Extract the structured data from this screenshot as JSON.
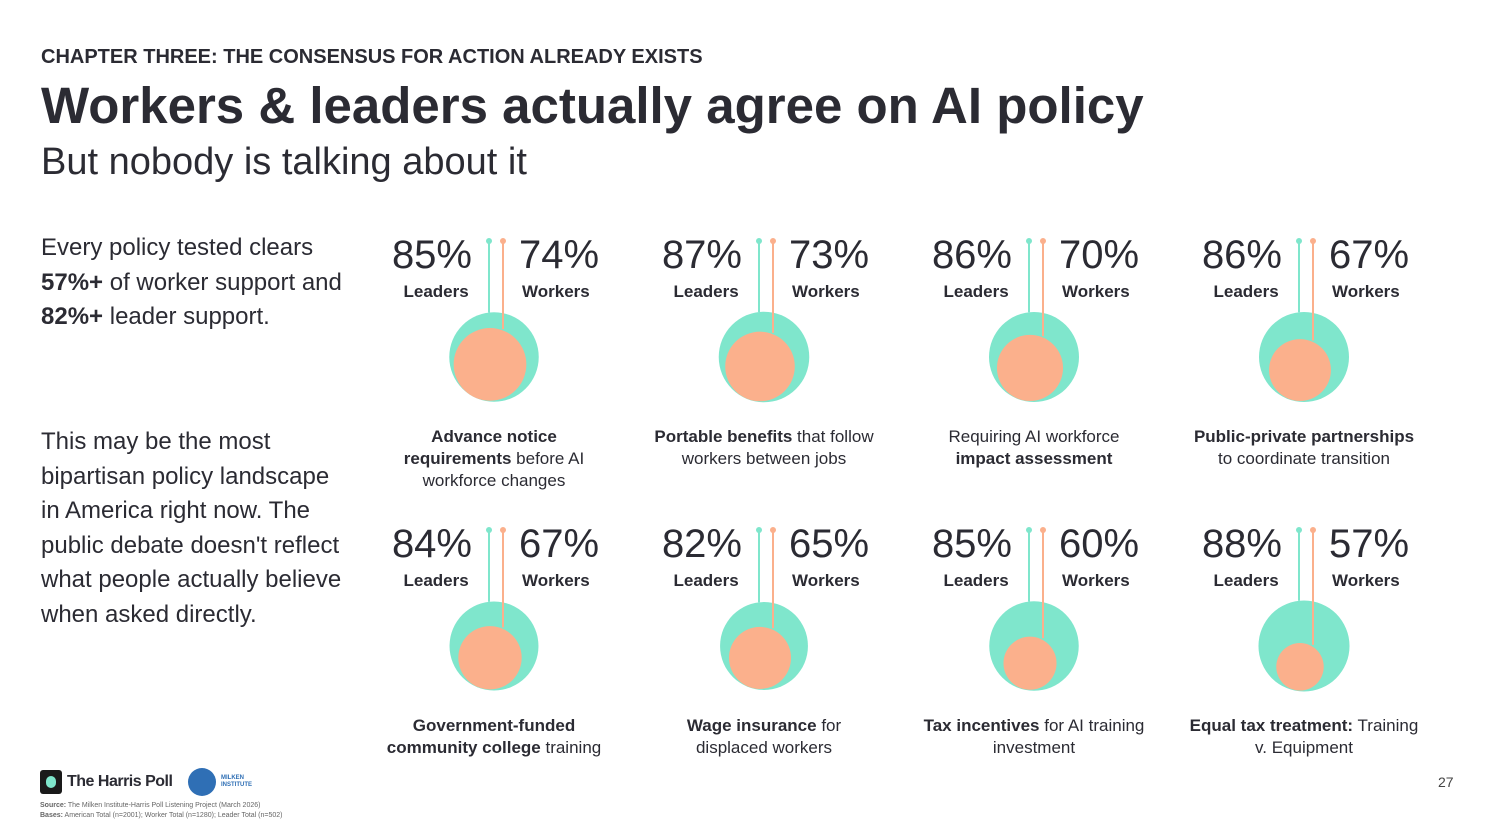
{
  "header": {
    "kicker": "CHAPTER THREE: THE CONSENSUS FOR ACTION ALREADY EXISTS",
    "title": "Workers & leaders actually agree on AI policy",
    "subtitle": "But nobody is talking about it"
  },
  "sidebar": [
    [
      {
        "text": "Every policy tested clears ",
        "bold": false
      },
      {
        "text": "57%+",
        "bold": true
      },
      {
        "text": " of worker support and ",
        "bold": false
      },
      {
        "text": "82%+",
        "bold": true
      },
      {
        "text": " leader support.",
        "bold": false
      }
    ],
    [
      {
        "text": "This may be the most bipartisan policy landscape in America right now. The public debate doesn't reflect what people actually believe when asked directly.",
        "bold": false
      }
    ]
  ],
  "chart_data": [
    {
      "type": "nested-circle",
      "series": [
        {
          "name": "Leaders",
          "color": "#7fe6cc",
          "values": [
            85
          ],
          "value_labels": [
            "85%"
          ]
        },
        {
          "name": "Workers",
          "color": "#fbb08c",
          "values": [
            74
          ],
          "value_labels": [
            "74%"
          ]
        }
      ],
      "caption": [
        {
          "text": "Advance notice requirements",
          "bold": true
        },
        {
          "text": " before AI workforce changes",
          "bold": false
        }
      ]
    },
    {
      "type": "nested-circle",
      "series": [
        {
          "name": "Leaders",
          "color": "#7fe6cc",
          "values": [
            87
          ],
          "value_labels": [
            "87%"
          ]
        },
        {
          "name": "Workers",
          "color": "#fbb08c",
          "values": [
            73
          ],
          "value_labels": [
            "73%"
          ]
        }
      ],
      "caption": [
        {
          "text": "Portable benefits",
          "bold": true
        },
        {
          "text": " that follow workers between jobs",
          "bold": false
        }
      ]
    },
    {
      "type": "nested-circle",
      "series": [
        {
          "name": "Leaders",
          "color": "#7fe6cc",
          "values": [
            86
          ],
          "value_labels": [
            "86%"
          ]
        },
        {
          "name": "Workers",
          "color": "#fbb08c",
          "values": [
            70
          ],
          "value_labels": [
            "70%"
          ]
        }
      ],
      "caption": [
        {
          "text": "Requiring AI workforce ",
          "bold": false
        },
        {
          "text": "impact assessment",
          "bold": true
        }
      ]
    },
    {
      "type": "nested-circle",
      "series": [
        {
          "name": "Leaders",
          "color": "#7fe6cc",
          "values": [
            86
          ],
          "value_labels": [
            "86%"
          ]
        },
        {
          "name": "Workers",
          "color": "#fbb08c",
          "values": [
            67
          ],
          "value_labels": [
            "67%"
          ]
        }
      ],
      "caption": [
        {
          "text": "Public-private partnerships",
          "bold": true
        },
        {
          "text": " to coordinate transition",
          "bold": false
        }
      ]
    },
    {
      "type": "nested-circle",
      "series": [
        {
          "name": "Leaders",
          "color": "#7fe6cc",
          "values": [
            84
          ],
          "value_labels": [
            "84%"
          ]
        },
        {
          "name": "Workers",
          "color": "#fbb08c",
          "values": [
            67
          ],
          "value_labels": [
            "67%"
          ]
        }
      ],
      "caption": [
        {
          "text": "Government-funded community college",
          "bold": true
        },
        {
          "text": " training",
          "bold": false
        }
      ]
    },
    {
      "type": "nested-circle",
      "series": [
        {
          "name": "Leaders",
          "color": "#7fe6cc",
          "values": [
            82
          ],
          "value_labels": [
            "82%"
          ]
        },
        {
          "name": "Workers",
          "color": "#fbb08c",
          "values": [
            65
          ],
          "value_labels": [
            "65%"
          ]
        }
      ],
      "caption": [
        {
          "text": "Wage insurance",
          "bold": true
        },
        {
          "text": " for displaced workers",
          "bold": false
        }
      ]
    },
    {
      "type": "nested-circle",
      "series": [
        {
          "name": "Leaders",
          "color": "#7fe6cc",
          "values": [
            85
          ],
          "value_labels": [
            "85%"
          ]
        },
        {
          "name": "Workers",
          "color": "#fbb08c",
          "values": [
            60
          ],
          "value_labels": [
            "60%"
          ]
        }
      ],
      "caption": [
        {
          "text": "Tax incentives",
          "bold": true
        },
        {
          "text": " for AI training investment",
          "bold": false
        }
      ]
    },
    {
      "type": "nested-circle",
      "series": [
        {
          "name": "Leaders",
          "color": "#7fe6cc",
          "values": [
            88
          ],
          "value_labels": [
            "88%"
          ]
        },
        {
          "name": "Workers",
          "color": "#fbb08c",
          "values": [
            57
          ],
          "value_labels": [
            "57%"
          ]
        }
      ],
      "caption": [
        {
          "text": "Equal tax treatment:",
          "bold": true
        },
        {
          "text": " Training v. Equipment",
          "bold": false
        }
      ]
    }
  ],
  "footer": {
    "logo_1": "The Harris Poll",
    "logo_2": "MILKEN INSTITUTE",
    "source_label": "Source:",
    "source": " The Milken Institute-Harris Poll Listening Project (March 2026)",
    "bases_label": "Bases:",
    "bases": " American Total (n=2001); Worker Total (n=1280); Leader Total (n=502)",
    "page": "27"
  }
}
